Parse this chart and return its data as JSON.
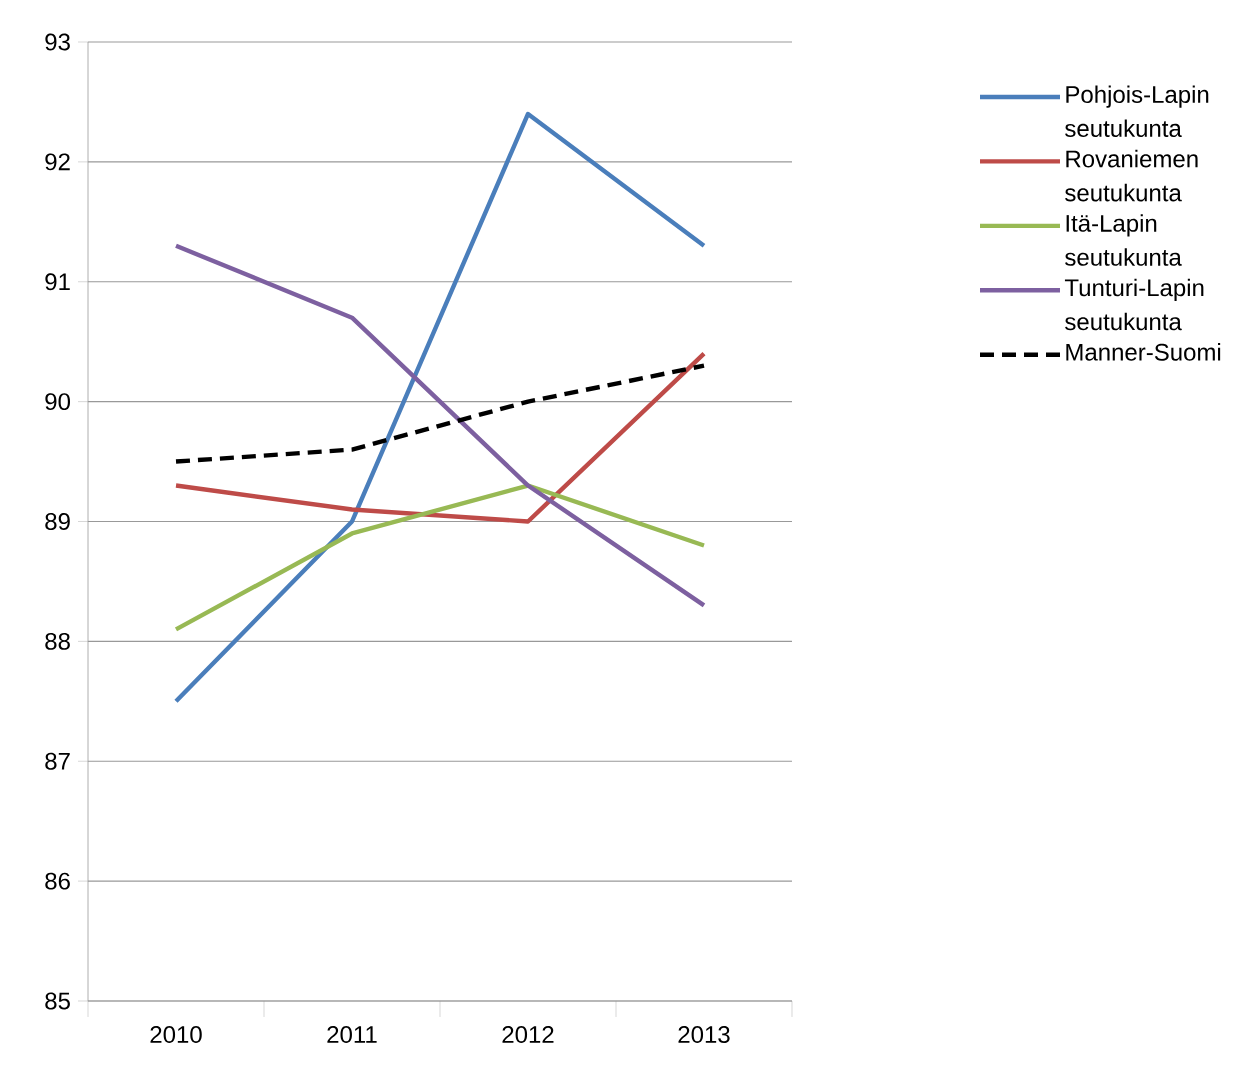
{
  "chart_data": {
    "type": "line",
    "categories": [
      "2010",
      "2011",
      "2012",
      "2013"
    ],
    "series": [
      {
        "name": "Pohjois-Lapin seutukunta",
        "color": "#4a7ebb",
        "values": [
          87.5,
          89.0,
          92.4,
          91.3
        ]
      },
      {
        "name": "Rovaniemen seutukunta",
        "color": "#be4b48",
        "values": [
          89.3,
          89.1,
          89.0,
          90.4
        ]
      },
      {
        "name": "Itä-Lapin seutukunta",
        "color": "#98b954",
        "values": [
          88.1,
          88.9,
          89.3,
          88.8
        ]
      },
      {
        "name": "Tunturi-Lapin seutukunta",
        "color": "#7d60a0",
        "values": [
          91.3,
          90.7,
          89.3,
          88.3
        ]
      },
      {
        "name": "Manner-Suomi",
        "color": "#000000",
        "values": [
          89.5,
          89.6,
          90.0,
          90.3
        ],
        "line_style": "dashed"
      }
    ],
    "ylim": [
      85,
      93
    ],
    "yticks": [
      85,
      86,
      87,
      88,
      89,
      90,
      91,
      92,
      93
    ],
    "grid": "y",
    "legend": "right",
    "marker": "none",
    "line_style": "solid"
  }
}
